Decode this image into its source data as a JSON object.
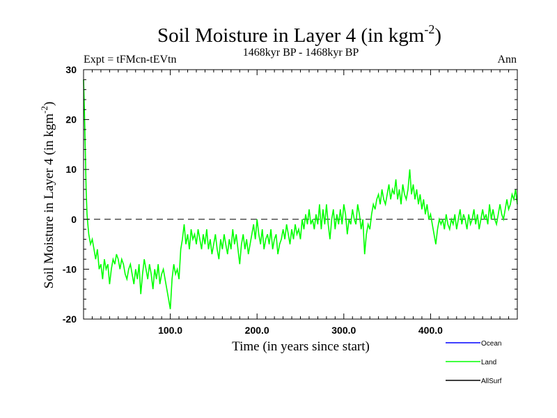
{
  "chart_data": {
    "type": "line",
    "title": "Soil Moisture in Layer 4 (in kgm",
    "title_superscript": "-2",
    "title_close": ")",
    "subtitle": "1468kyr BP - 1468kyr BP",
    "experiment_label": "Expt = tFMcn-tEVtn",
    "season_label": "Ann",
    "xlabel": "Time (in years since start)",
    "ylabel": "Soil Moisture in Layer 4 (in kgm",
    "ylabel_superscript": "-2",
    "ylabel_close": ")",
    "xlim": [
      0,
      500
    ],
    "ylim": [
      -20,
      30
    ],
    "x_ticks": [
      100,
      200,
      300,
      400
    ],
    "x_tick_labels": [
      "100.0",
      "200.0",
      "300.0",
      "400.0"
    ],
    "y_ticks": [
      -20,
      -10,
      0,
      10,
      20,
      30
    ],
    "y_tick_labels": [
      "-20",
      "-10",
      "0",
      "10",
      "20",
      "30"
    ],
    "reference_line": 0,
    "series": [
      {
        "name": "Ocean",
        "color": "#0000ff",
        "values": []
      },
      {
        "name": "Land",
        "color": "#00ff00",
        "values": [
          [
            0,
            28
          ],
          [
            1,
            22
          ],
          [
            2,
            14
          ],
          [
            3,
            6
          ],
          [
            4,
            1
          ],
          [
            5,
            -1
          ],
          [
            6,
            -3
          ],
          [
            8,
            -5
          ],
          [
            10,
            -4
          ],
          [
            12,
            -6
          ],
          [
            14,
            -8
          ],
          [
            16,
            -6
          ],
          [
            18,
            -10
          ],
          [
            20,
            -9
          ],
          [
            22,
            -12
          ],
          [
            24,
            -8
          ],
          [
            26,
            -10
          ],
          [
            28,
            -9
          ],
          [
            30,
            -13
          ],
          [
            32,
            -10
          ],
          [
            34,
            -8
          ],
          [
            36,
            -9
          ],
          [
            38,
            -7
          ],
          [
            40,
            -8
          ],
          [
            42,
            -10
          ],
          [
            44,
            -8
          ],
          [
            46,
            -9
          ],
          [
            48,
            -11
          ],
          [
            50,
            -12
          ],
          [
            52,
            -10
          ],
          [
            54,
            -9
          ],
          [
            56,
            -11
          ],
          [
            58,
            -13
          ],
          [
            60,
            -10
          ],
          [
            62,
            -12
          ],
          [
            64,
            -9
          ],
          [
            66,
            -15
          ],
          [
            68,
            -11
          ],
          [
            70,
            -8
          ],
          [
            72,
            -10
          ],
          [
            74,
            -12
          ],
          [
            76,
            -9
          ],
          [
            78,
            -11
          ],
          [
            80,
            -14
          ],
          [
            82,
            -10
          ],
          [
            84,
            -12
          ],
          [
            86,
            -9
          ],
          [
            88,
            -13
          ],
          [
            90,
            -11
          ],
          [
            92,
            -10
          ],
          [
            94,
            -12
          ],
          [
            96,
            -14
          ],
          [
            98,
            -16
          ],
          [
            100,
            -18
          ],
          [
            102,
            -12
          ],
          [
            104,
            -9
          ],
          [
            106,
            -11
          ],
          [
            108,
            -10
          ],
          [
            110,
            -12
          ],
          [
            112,
            -6
          ],
          [
            114,
            -4
          ],
          [
            116,
            -1
          ],
          [
            118,
            -5
          ],
          [
            120,
            -3
          ],
          [
            122,
            -6
          ],
          [
            124,
            -2
          ],
          [
            126,
            -4
          ],
          [
            128,
            -3
          ],
          [
            130,
            -5
          ],
          [
            132,
            -2
          ],
          [
            134,
            -4
          ],
          [
            136,
            -6
          ],
          [
            138,
            -3
          ],
          [
            140,
            -5
          ],
          [
            142,
            -2
          ],
          [
            144,
            -6
          ],
          [
            146,
            -4
          ],
          [
            148,
            -7
          ],
          [
            150,
            -5
          ],
          [
            152,
            -3
          ],
          [
            154,
            -6
          ],
          [
            156,
            -8
          ],
          [
            158,
            -4
          ],
          [
            160,
            -6
          ],
          [
            162,
            -3
          ],
          [
            164,
            -5
          ],
          [
            166,
            -7
          ],
          [
            168,
            -4
          ],
          [
            170,
            -6
          ],
          [
            172,
            -2
          ],
          [
            174,
            -5
          ],
          [
            176,
            -3
          ],
          [
            178,
            -6
          ],
          [
            180,
            -9
          ],
          [
            182,
            -5
          ],
          [
            184,
            -3
          ],
          [
            186,
            -6
          ],
          [
            188,
            -4
          ],
          [
            190,
            -7
          ],
          [
            192,
            -5
          ],
          [
            194,
            -3
          ],
          [
            196,
            -1
          ],
          [
            198,
            -4
          ],
          [
            200,
            0
          ],
          [
            202,
            -3
          ],
          [
            204,
            -5
          ],
          [
            206,
            -2
          ],
          [
            208,
            -6
          ],
          [
            210,
            -4
          ],
          [
            212,
            -3
          ],
          [
            214,
            -5
          ],
          [
            216,
            -2
          ],
          [
            218,
            -6
          ],
          [
            220,
            -4
          ],
          [
            222,
            -3
          ],
          [
            224,
            -7
          ],
          [
            226,
            -5
          ],
          [
            228,
            -4
          ],
          [
            230,
            -2
          ],
          [
            232,
            -4
          ],
          [
            234,
            -1
          ],
          [
            236,
            -3
          ],
          [
            238,
            -5
          ],
          [
            240,
            -2
          ],
          [
            242,
            -4
          ],
          [
            244,
            -1
          ],
          [
            246,
            -3
          ],
          [
            248,
            -2
          ],
          [
            250,
            -4
          ],
          [
            252,
            0
          ],
          [
            254,
            -2
          ],
          [
            256,
            1
          ],
          [
            258,
            -1
          ],
          [
            260,
            2
          ],
          [
            262,
            -1
          ],
          [
            264,
            0
          ],
          [
            266,
            -2
          ],
          [
            268,
            1
          ],
          [
            270,
            -1
          ],
          [
            272,
            3
          ],
          [
            274,
            -2
          ],
          [
            276,
            2
          ],
          [
            278,
            -1
          ],
          [
            280,
            3
          ],
          [
            282,
            -1
          ],
          [
            284,
            -4
          ],
          [
            286,
            0
          ],
          [
            288,
            2
          ],
          [
            290,
            -2
          ],
          [
            292,
            1
          ],
          [
            294,
            -1
          ],
          [
            296,
            2
          ],
          [
            298,
            -1
          ],
          [
            300,
            3
          ],
          [
            302,
            1
          ],
          [
            304,
            -3
          ],
          [
            306,
            0
          ],
          [
            308,
            -1
          ],
          [
            310,
            2
          ],
          [
            312,
            0
          ],
          [
            314,
            -1
          ],
          [
            316,
            3
          ],
          [
            318,
            1
          ],
          [
            320,
            -2
          ],
          [
            322,
            0
          ],
          [
            324,
            -7
          ],
          [
            326,
            -3
          ],
          [
            328,
            -1
          ],
          [
            330,
            -2
          ],
          [
            332,
            1
          ],
          [
            334,
            3
          ],
          [
            336,
            2
          ],
          [
            338,
            4
          ],
          [
            340,
            5
          ],
          [
            342,
            3
          ],
          [
            344,
            6
          ],
          [
            346,
            4
          ],
          [
            348,
            3
          ],
          [
            350,
            5
          ],
          [
            352,
            7
          ],
          [
            354,
            4
          ],
          [
            356,
            6
          ],
          [
            358,
            5
          ],
          [
            360,
            8
          ],
          [
            362,
            4
          ],
          [
            364,
            6
          ],
          [
            366,
            3
          ],
          [
            368,
            7
          ],
          [
            370,
            5
          ],
          [
            372,
            4
          ],
          [
            374,
            6
          ],
          [
            376,
            10
          ],
          [
            378,
            5
          ],
          [
            380,
            7
          ],
          [
            382,
            4
          ],
          [
            384,
            6
          ],
          [
            386,
            3
          ],
          [
            388,
            5
          ],
          [
            390,
            2
          ],
          [
            392,
            4
          ],
          [
            394,
            1
          ],
          [
            396,
            3
          ],
          [
            398,
            0
          ],
          [
            400,
            1
          ],
          [
            402,
            -1
          ],
          [
            404,
            -3
          ],
          [
            406,
            -5
          ],
          [
            408,
            -2
          ],
          [
            410,
            0
          ],
          [
            412,
            -1
          ],
          [
            414,
            0
          ],
          [
            416,
            -2
          ],
          [
            418,
            1
          ],
          [
            420,
            -1
          ],
          [
            422,
            -2
          ],
          [
            424,
            0
          ],
          [
            426,
            -1
          ],
          [
            428,
            1
          ],
          [
            430,
            -2
          ],
          [
            432,
            0
          ],
          [
            434,
            2
          ],
          [
            436,
            -1
          ],
          [
            438,
            1
          ],
          [
            440,
            0
          ],
          [
            442,
            -2
          ],
          [
            444,
            1
          ],
          [
            446,
            -1
          ],
          [
            448,
            0
          ],
          [
            450,
            2
          ],
          [
            452,
            -1
          ],
          [
            454,
            1
          ],
          [
            456,
            -2
          ],
          [
            458,
            0
          ],
          [
            460,
            2
          ],
          [
            462,
            0
          ],
          [
            464,
            1
          ],
          [
            466,
            -1
          ],
          [
            468,
            3
          ],
          [
            470,
            0
          ],
          [
            472,
            2
          ],
          [
            474,
            0
          ],
          [
            476,
            -1
          ],
          [
            478,
            1
          ],
          [
            480,
            3
          ],
          [
            482,
            1
          ],
          [
            484,
            0
          ],
          [
            486,
            2
          ],
          [
            488,
            4
          ],
          [
            490,
            2
          ],
          [
            492,
            3
          ],
          [
            494,
            5
          ],
          [
            496,
            4
          ],
          [
            498,
            6
          ],
          [
            500,
            3
          ]
        ]
      },
      {
        "name": "AllSurf",
        "color": "#000000",
        "values": []
      }
    ],
    "legend_placement": "bottom-right"
  }
}
